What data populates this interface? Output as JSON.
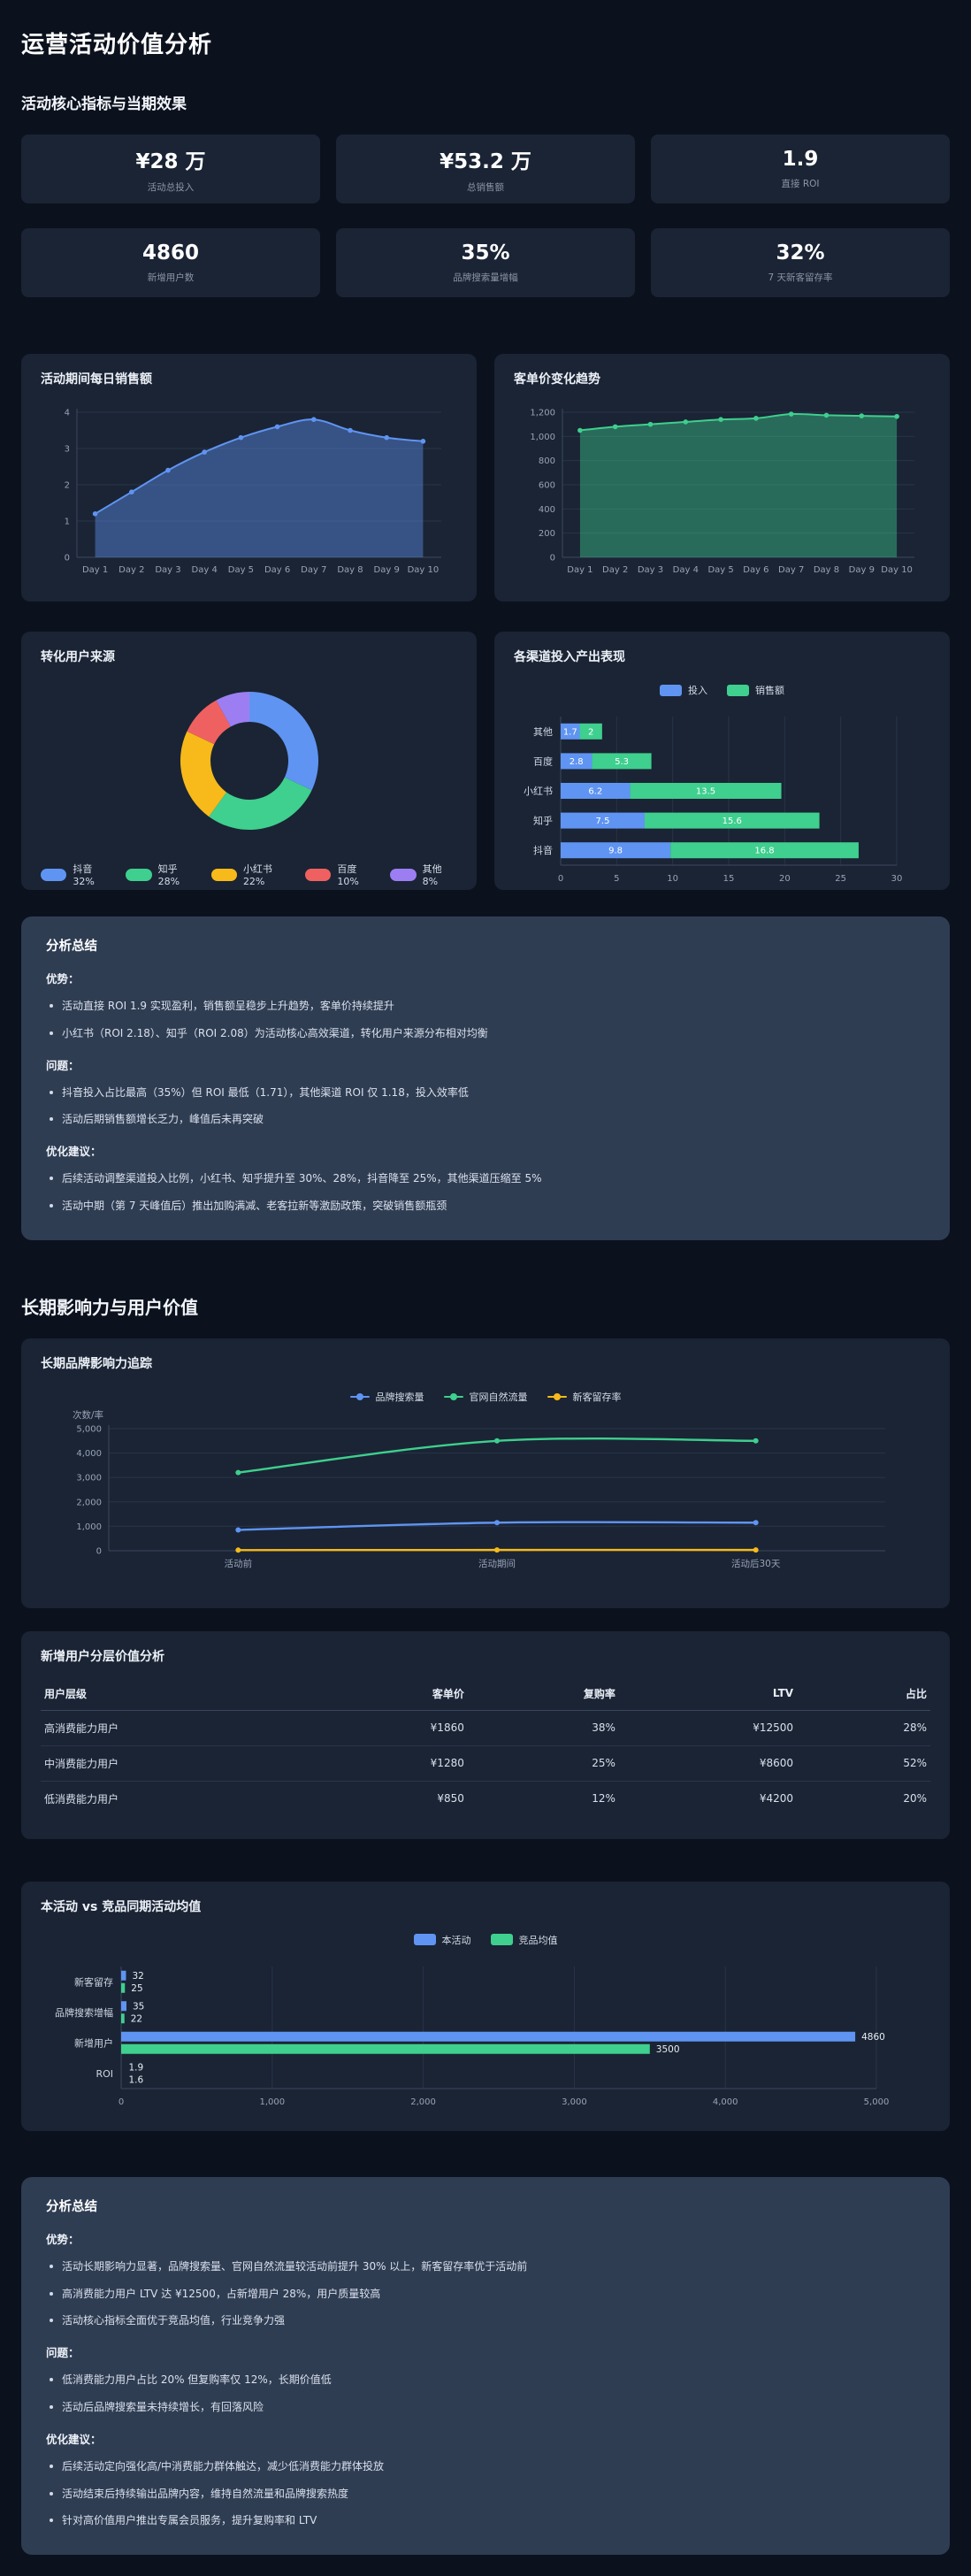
{
  "page": {
    "title": "运营活动价值分析"
  },
  "sections": {
    "s1": "活动核心指标与当期效果",
    "s2": "长期影响力与用户价值"
  },
  "colors": {
    "blue": "#5f94f2",
    "green": "#3fcf8e",
    "yellow": "#f7ba1a",
    "red": "#ef6160",
    "purple": "#9c7ef2",
    "page_bg": "#0b111d",
    "card_bg": "#1a2434",
    "summary_bg": "#2f3d53"
  },
  "kpis": [
    {
      "value": "¥28 万",
      "label": "活动总投入"
    },
    {
      "value": "¥53.2 万",
      "label": "总销售额"
    },
    {
      "value": "1.9",
      "label": "直接 ROI"
    },
    {
      "value": "4860",
      "label": "新增用户数"
    },
    {
      "value": "35%",
      "label": "品牌搜索量增幅"
    },
    {
      "value": "32%",
      "label": "7 天新客留存率"
    }
  ],
  "chart_data": [
    {
      "id": "daily_sales",
      "type": "area",
      "title": "活动期间每日销售额",
      "categories": [
        "Day 1",
        "Day 2",
        "Day 3",
        "Day 4",
        "Day 5",
        "Day 6",
        "Day 7",
        "Day 8",
        "Day 9",
        "Day 10"
      ],
      "values": [
        1.2,
        1.8,
        2.4,
        2.9,
        3.3,
        3.6,
        3.8,
        3.5,
        3.3,
        3.2
      ],
      "ylim": [
        0,
        4
      ],
      "yticks": [
        0,
        1,
        2,
        3,
        4
      ],
      "color": "#5f94f2",
      "grid": true
    },
    {
      "id": "aov_trend",
      "type": "area",
      "title": "客单价变化趋势",
      "categories": [
        "Day 1",
        "Day 2",
        "Day 3",
        "Day 4",
        "Day 5",
        "Day 6",
        "Day 7",
        "Day 8",
        "Day 9",
        "Day 10"
      ],
      "values": [
        1050,
        1080,
        1100,
        1120,
        1140,
        1150,
        1185,
        1175,
        1170,
        1165
      ],
      "ylim": [
        0,
        1200
      ],
      "yticks": [
        0,
        200,
        400,
        600,
        800,
        1000,
        1200
      ],
      "color": "#3fcf8e",
      "grid": true
    },
    {
      "id": "user_source",
      "type": "donut",
      "title": "转化用户来源",
      "slices": [
        {
          "label": "抖音",
          "pct": 32,
          "color": "#5f94f2"
        },
        {
          "label": "知乎",
          "pct": 28,
          "color": "#3fcf8e"
        },
        {
          "label": "小红书",
          "pct": 22,
          "color": "#f7ba1a"
        },
        {
          "label": "百度",
          "pct": 10,
          "color": "#ef6160"
        },
        {
          "label": "其他",
          "pct": 8,
          "color": "#9c7ef2"
        }
      ],
      "legend_position": "bottom"
    },
    {
      "id": "channel_perf",
      "type": "hbar-stacked",
      "title": "各渠道投入产出表现",
      "categories": [
        "其他",
        "百度",
        "小红书",
        "知乎",
        "抖音"
      ],
      "series": [
        {
          "name": "投入",
          "color": "#5f94f2",
          "values": [
            1.7,
            2.8,
            6.2,
            7.5,
            9.8
          ]
        },
        {
          "name": "销售额",
          "color": "#3fcf8e",
          "values": [
            2,
            5.3,
            13.5,
            15.6,
            16.8
          ]
        }
      ],
      "xlim": [
        0,
        30
      ],
      "xticks": [
        0,
        5,
        10,
        15,
        20,
        25,
        30
      ],
      "legend_position": "top",
      "grid": true
    },
    {
      "id": "brand_tracking",
      "type": "line",
      "title": "长期品牌影响力追踪",
      "ylabel": "次数/率",
      "categories": [
        "活动前",
        "活动期间",
        "活动后30天"
      ],
      "series": [
        {
          "name": "品牌搜索量",
          "color": "#5f94f2",
          "values": [
            850,
            1150,
            1150
          ]
        },
        {
          "name": "官网自然流量",
          "color": "#3fcf8e",
          "values": [
            3200,
            4500,
            4500
          ]
        },
        {
          "name": "新客留存率",
          "color": "#f7ba1a",
          "values": [
            25,
            32,
            32
          ]
        }
      ],
      "ylim": [
        0,
        5000
      ],
      "yticks": [
        0,
        1000,
        2000,
        3000,
        4000,
        5000
      ],
      "legend_position": "top",
      "grid": true
    },
    {
      "id": "vs_competitor",
      "type": "hbar-grouped",
      "title": "本活动 vs 竞品同期活动均值",
      "categories": [
        "新客留存",
        "品牌搜索增幅",
        "新增用户",
        "ROI"
      ],
      "series": [
        {
          "name": "本活动",
          "color": "#5f94f2",
          "values": [
            32,
            35,
            4860,
            1.9
          ]
        },
        {
          "name": "竞品均值",
          "color": "#3fcf8e",
          "values": [
            25,
            22,
            3500,
            1.6
          ]
        }
      ],
      "xlim": [
        0,
        5000
      ],
      "xticks": [
        0,
        1000,
        2000,
        3000,
        4000,
        5000
      ],
      "legend_position": "top",
      "grid": true
    }
  ],
  "table": {
    "title": "新增用户分层价值分析",
    "headers": [
      "用户层级",
      "客单价",
      "复购率",
      "LTV",
      "占比"
    ],
    "rows": [
      [
        "高消费能力用户",
        "¥1860",
        "38%",
        "¥12500",
        "28%"
      ],
      [
        "中消费能力用户",
        "¥1280",
        "25%",
        "¥8600",
        "52%"
      ],
      [
        "低消费能力用户",
        "¥850",
        "12%",
        "¥4200",
        "20%"
      ]
    ]
  },
  "summaries": [
    {
      "title": "分析总结",
      "groups": [
        {
          "label": "优势：",
          "items": [
            "活动直接 ROI 1.9 实现盈利，销售额呈稳步上升趋势，客单价持续提升",
            "小红书（ROI 2.18）、知乎（ROI 2.08）为活动核心高效渠道，转化用户来源分布相对均衡"
          ]
        },
        {
          "label": "问题：",
          "items": [
            "抖音投入占比最高（35%）但 ROI 最低（1.71），其他渠道 ROI 仅 1.18，投入效率低",
            "活动后期销售额增长乏力，峰值后未再突破"
          ]
        },
        {
          "label": "优化建议：",
          "items": [
            "后续活动调整渠道投入比例，小红书、知乎提升至 30%、28%，抖音降至 25%，其他渠道压缩至 5%",
            "活动中期（第 7 天峰值后）推出加购满减、老客拉新等激励政策，突破销售额瓶颈"
          ]
        }
      ]
    },
    {
      "title": "分析总结",
      "groups": [
        {
          "label": "优势：",
          "items": [
            "活动长期影响力显著，品牌搜索量、官网自然流量较活动前提升 30% 以上，新客留存率优于活动前",
            "高消费能力用户 LTV 达 ¥12500，占新增用户 28%，用户质量较高",
            "活动核心指标全面优于竞品均值，行业竞争力强"
          ]
        },
        {
          "label": "问题：",
          "items": [
            "低消费能力用户占比 20% 但复购率仅 12%，长期价值低",
            "活动后品牌搜索量未持续增长，有回落风险"
          ]
        },
        {
          "label": "优化建议：",
          "items": [
            "后续活动定向强化高/中消费能力群体触达，减少低消费能力群体投放",
            "活动结束后持续输出品牌内容，维持自然流量和品牌搜索热度",
            "针对高价值用户推出专属会员服务，提升复购率和 LTV"
          ]
        }
      ]
    }
  ]
}
